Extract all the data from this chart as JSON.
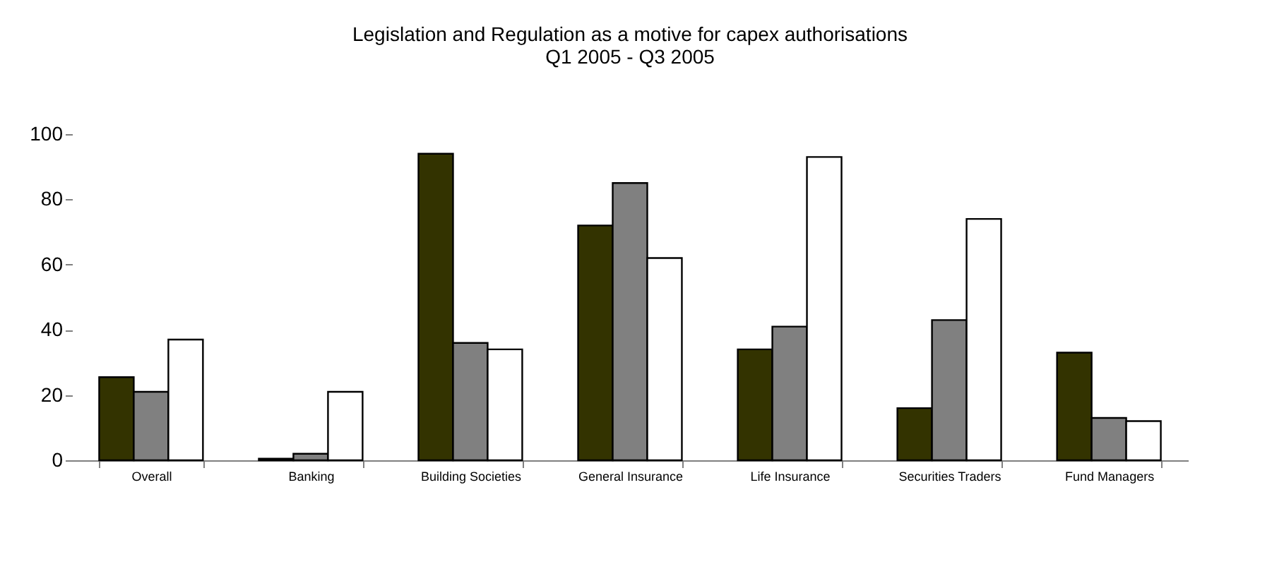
{
  "chart_data": {
    "type": "bar",
    "title": "Legislation and Regulation as a motive for capex authorisations",
    "subtitle": "Q1 2005 - Q3 2005",
    "categories": [
      "Overall",
      "Banking",
      "Building Societies",
      "General Insurance",
      "Life Insurance",
      "Securities Traders",
      "Fund Managers"
    ],
    "series": [
      {
        "color": "#333300",
        "values": [
          25.5,
          0.5,
          94,
          72,
          34,
          16,
          33
        ]
      },
      {
        "color": "#808080",
        "values": [
          21,
          2,
          36,
          85,
          41,
          43,
          13
        ]
      },
      {
        "color": "#ffffff",
        "values": [
          37,
          21,
          34,
          62,
          93,
          74,
          12
        ]
      }
    ],
    "ylim": [
      0,
      100
    ],
    "yticks": [
      0,
      20,
      40,
      60,
      80,
      100
    ],
    "grid": false
  }
}
